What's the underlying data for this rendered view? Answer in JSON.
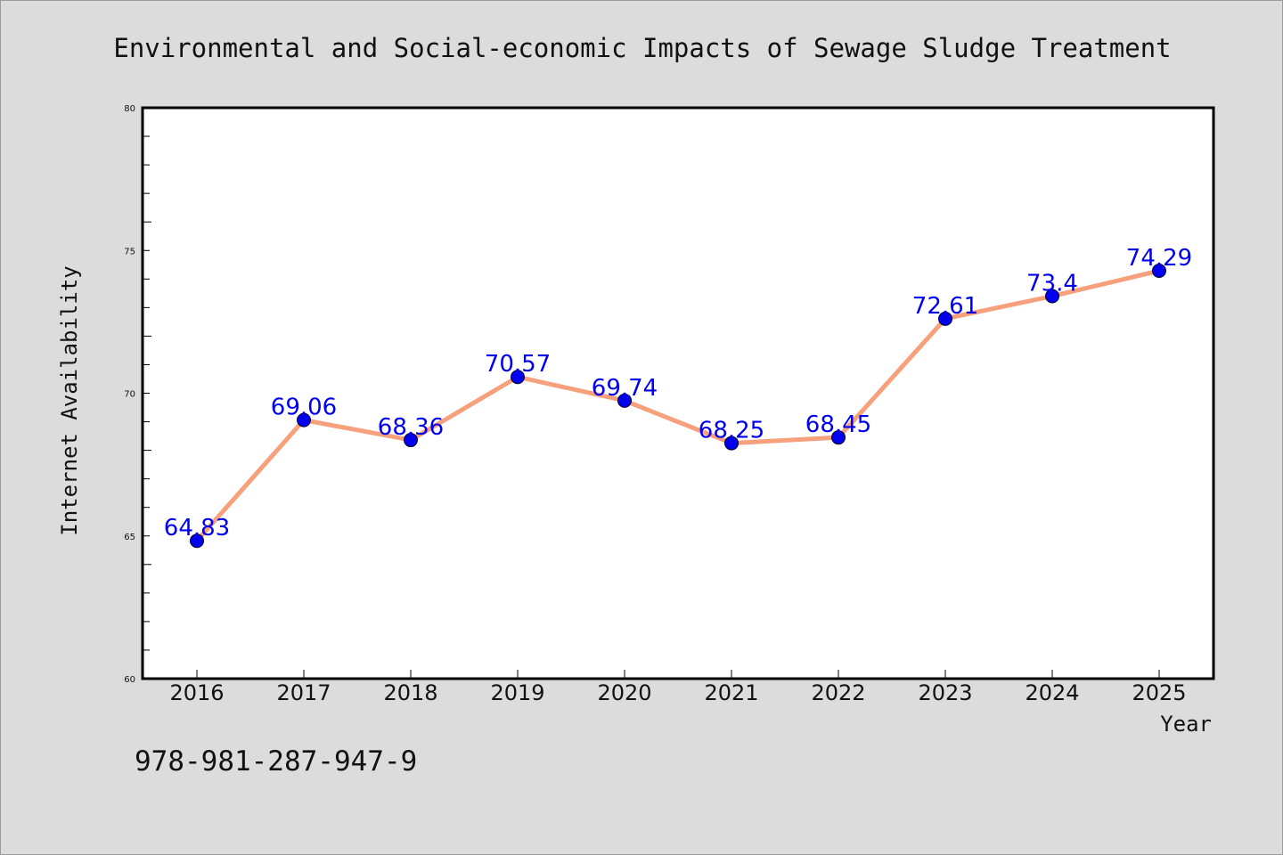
{
  "chart_data": {
    "type": "line",
    "title": "Environmental and Social-economic Impacts of Sewage Sludge Treatment",
    "xlabel": "Year",
    "ylabel": "Internet Availability",
    "categories": [
      "2016",
      "2017",
      "2018",
      "2019",
      "2020",
      "2021",
      "2022",
      "2023",
      "2024",
      "2025"
    ],
    "series": [
      {
        "values": [
          64.83,
          69.06,
          68.36,
          70.57,
          69.74,
          68.25,
          68.45,
          72.61,
          73.4,
          74.29
        ],
        "labels": [
          "64.83",
          "69.06",
          "68.36",
          "70.57",
          "69.74",
          "68.25",
          "68.45",
          "72.61",
          "73.4",
          "74.29"
        ]
      }
    ],
    "ylim": [
      60,
      80
    ],
    "yticks": [
      "60",
      "65",
      "70",
      "75",
      "80"
    ],
    "grid": false,
    "legend": "none"
  },
  "footer": {
    "code": "978-981-287-947-9"
  },
  "colors": {
    "line": "#f7a07c",
    "marker": "#0000ee",
    "data_label": "#0000ee",
    "background": "#dcdcdc",
    "plot_background": "#ffffff"
  }
}
